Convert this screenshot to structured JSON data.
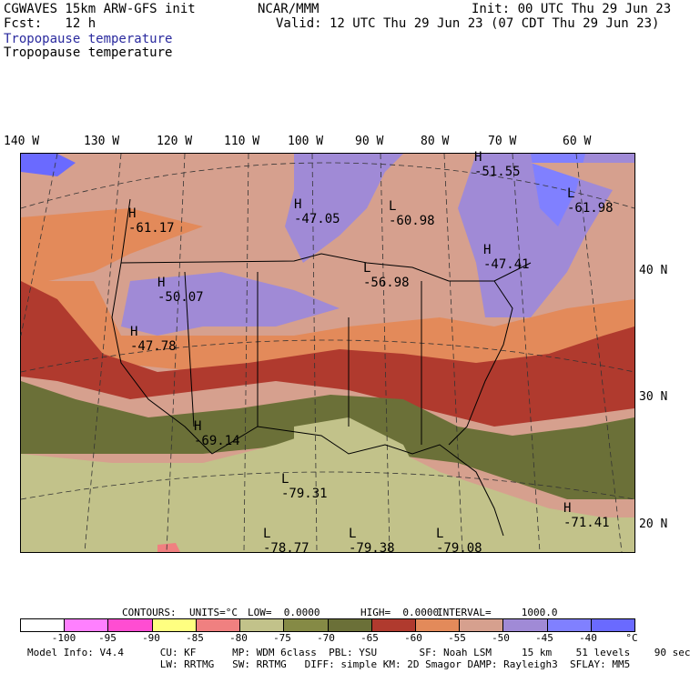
{
  "header": {
    "line1_left": "CGWAVES 15km ARW-GFS init",
    "line1_mid": "NCAR/MMM",
    "line1_right": "Init: 00 UTC Thu 29 Jun 23",
    "line2_left": "Fcst:   12 h",
    "line2_right": "Valid: 12 UTC Thu 29 Jun 23 (07 CDT Thu 29 Jun 23)",
    "field_title_1": "Tropopause temperature",
    "field_title_2": "Tropopause temperature"
  },
  "longitude_labels": [
    "140 W",
    "130 W",
    "120 W",
    "110 W",
    "100 W",
    "90 W",
    "80 W",
    "70 W",
    "60 W"
  ],
  "latitude_labels": [
    "40 N",
    "30 N",
    "20 N"
  ],
  "map_annotations": [
    {
      "mark": "H",
      "value": "-51.55"
    },
    {
      "mark": "L",
      "value": "-61.98"
    },
    {
      "mark": "H",
      "value": "-47.05"
    },
    {
      "mark": "L",
      "value": "-60.98"
    },
    {
      "mark": "H",
      "value": "-61.17"
    },
    {
      "mark": "H",
      "value": "-47.41"
    },
    {
      "mark": "H",
      "value": "-50.07"
    },
    {
      "mark": "L",
      "value": "-56.98"
    },
    {
      "mark": "H",
      "value": "-47.78"
    },
    {
      "mark": "H",
      "value": "-69.14"
    },
    {
      "mark": "L",
      "value": "-79.31"
    },
    {
      "mark": "H",
      "value": "-71.41"
    },
    {
      "mark": "L",
      "value": "-78.77"
    },
    {
      "mark": "L",
      "value": "-79.38"
    },
    {
      "mark": "L",
      "value": "-79.08"
    }
  ],
  "contour_info": {
    "contours_label": "CONTOURS:",
    "units": "UNITS=°C",
    "low": "LOW=  0.0000",
    "high": "HIGH=  0.0000",
    "interval": "INTERVAL=     1000.0"
  },
  "colorbar": {
    "colors": [
      "#ffffff",
      "#ff80ff",
      "#ff4dd2",
      "#ffff80",
      "#f08080",
      "#c2c28a",
      "#858a45",
      "#6b7038",
      "#b03a2e",
      "#e38a5a",
      "#d6a08e",
      "#a08ad6",
      "#8080ff",
      "#6a6aff"
    ],
    "tick_labels": [
      "-100",
      "-95",
      "-90",
      "-85",
      "-80",
      "-75",
      "-70",
      "-65",
      "-60",
      "-55",
      "-50",
      "-45",
      "-40",
      "°C"
    ]
  },
  "footer": {
    "line1": "Model Info: V4.4      CU: KF      MP: WDM 6class  PBL: YSU       SF: Noah LSM     15 km    51 levels    90 sec",
    "line2": "                      LW: RRTMG   SW: RRTMG   DIFF: simple KM: 2D Smagor DAMP: Rayleigh3  SFLAY: MM5"
  }
}
